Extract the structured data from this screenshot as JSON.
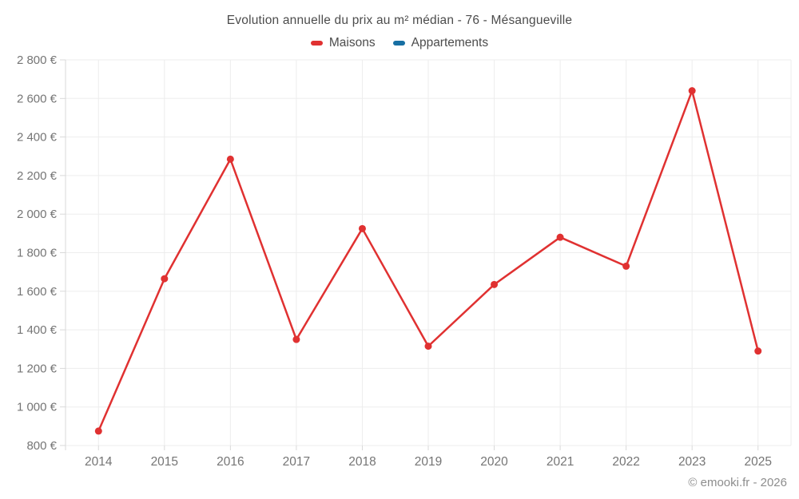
{
  "chart_data": {
    "type": "line",
    "title": "Evolution annuelle du prix au m² médian - 76 - Mésangueville",
    "categories": [
      "2014",
      "2015",
      "2016",
      "2017",
      "2018",
      "2019",
      "2020",
      "2021",
      "2022",
      "2023",
      "2025"
    ],
    "series": [
      {
        "name": "Maisons",
        "color": "#e03131",
        "values": [
          875,
          1665,
          2285,
          1350,
          1925,
          1315,
          1635,
          1880,
          1730,
          2640,
          1290
        ]
      },
      {
        "name": "Appartements",
        "color": "#176fa3",
        "values": []
      }
    ],
    "xlabel": "",
    "ylabel": "",
    "ylim": [
      800,
      2800
    ],
    "yticks": [
      800,
      1000,
      1200,
      1400,
      1600,
      1800,
      2000,
      2200,
      2400,
      2600,
      2800
    ],
    "ytick_labels": [
      "800 €",
      "1 000 €",
      "1 200 €",
      "1 400 €",
      "1 600 €",
      "1 800 €",
      "2 000 €",
      "2 200 €",
      "2 400 €",
      "2 600 €",
      "2 800 €"
    ],
    "grid": true,
    "legend_position": "top",
    "marker_radius": 4.5,
    "line_width": 2.5
  },
  "colors": {
    "grid": "#ededed",
    "axis": "#d9d9d9",
    "tick_text": "#757575"
  },
  "footer": {
    "copyright": "© emooki.fr - 2026"
  }
}
